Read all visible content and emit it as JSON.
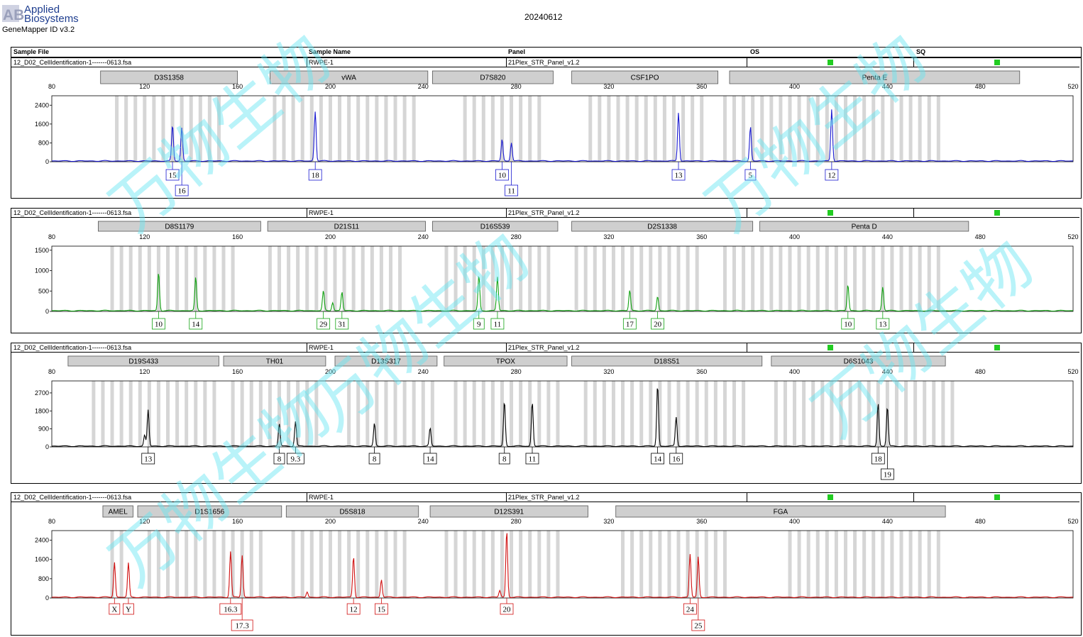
{
  "report": {
    "brand_line1": "Applied",
    "brand_line2": "Biosystems",
    "logo_letters": "AB",
    "software": "GeneMapper ID v3.2",
    "date": "20240612",
    "watermark": "万物生物"
  },
  "table_header": {
    "sample_file": "Sample File",
    "sample_name": "Sample Name",
    "panel": "Panel",
    "os": "OS",
    "sq": "SQ"
  },
  "colors": {
    "blue": "#1a1ad0",
    "green": "#13a313",
    "black": "#000000",
    "red": "#d01010",
    "bin": "#d6d6d6",
    "marker": "#cfcfcf",
    "indicator": "#22cc22"
  },
  "chart_data": [
    {
      "type": "line",
      "color": "blue",
      "sample_file": "12_D02_CellIdentification-1-------0613.fsa",
      "sample_name": "RWPE-1",
      "panel": "21Plex_STR_Panel_v1.2",
      "xlim": [
        80,
        520
      ],
      "x_ticks": [
        80,
        120,
        160,
        200,
        240,
        280,
        320,
        360,
        400,
        440,
        480,
        520
      ],
      "ylim": [
        0,
        2800
      ],
      "y_ticks": [
        0,
        800,
        1600,
        2400
      ],
      "markers": [
        {
          "name": "D3S1358",
          "start": 101,
          "end": 160
        },
        {
          "name": "vWA",
          "start": 174,
          "end": 242
        },
        {
          "name": "D7S820",
          "start": 244,
          "end": 296
        },
        {
          "name": "CSF1PO",
          "start": 304,
          "end": 367
        },
        {
          "name": "Penta E",
          "start": 372,
          "end": 497
        }
      ],
      "bins": [
        [
          108,
          152
        ],
        [
          176,
          236
        ],
        [
          258,
          291
        ],
        [
          312,
          360
        ],
        [
          370,
          465
        ]
      ],
      "peaks": [
        {
          "x": 132,
          "height": 1520,
          "label": "15",
          "row": 0
        },
        {
          "x": 136,
          "height": 1420,
          "label": "16",
          "row": 1
        },
        {
          "x": 193,
          "height": 130,
          "label": "",
          "row": 0
        },
        {
          "x": 193.5,
          "height": 2050,
          "label": "18",
          "row": 0
        },
        {
          "x": 274,
          "height": 920,
          "label": "10",
          "row": 0
        },
        {
          "x": 278,
          "height": 780,
          "label": "11",
          "row": 1
        },
        {
          "x": 350,
          "height": 2060,
          "label": "13",
          "row": 0
        },
        {
          "x": 381,
          "height": 1460,
          "label": "5",
          "row": 0
        },
        {
          "x": 416,
          "height": 2200,
          "label": "12",
          "row": 0
        }
      ]
    },
    {
      "type": "line",
      "color": "green",
      "sample_file": "12_D02_CellIdentification-1-------0613.fsa",
      "sample_name": "RWPE-1",
      "panel": "21Plex_STR_Panel_v1.2",
      "xlim": [
        80,
        520
      ],
      "x_ticks": [
        80,
        120,
        160,
        200,
        240,
        280,
        320,
        360,
        400,
        440,
        480,
        520
      ],
      "ylim": [
        0,
        1600
      ],
      "y_ticks": [
        0,
        500,
        1000,
        1500
      ],
      "markers": [
        {
          "name": "D8S1179",
          "start": 100,
          "end": 170
        },
        {
          "name": "D21S11",
          "start": 173,
          "end": 241
        },
        {
          "name": "D16S539",
          "start": 244,
          "end": 298
        },
        {
          "name": "D2S1338",
          "start": 304,
          "end": 382
        },
        {
          "name": "Penta D",
          "start": 385,
          "end": 475
        }
      ],
      "bins": [
        [
          106,
          160
        ],
        [
          174,
          232
        ],
        [
          250,
          296
        ],
        [
          306,
          360
        ],
        [
          370,
          462
        ]
      ],
      "peaks": [
        {
          "x": 126,
          "height": 940,
          "label": "10",
          "row": 0
        },
        {
          "x": 142,
          "height": 820,
          "label": "14",
          "row": 0
        },
        {
          "x": 197,
          "height": 480,
          "label": "29",
          "row": 0
        },
        {
          "x": 201,
          "height": 200,
          "label": "",
          "row": 0
        },
        {
          "x": 205,
          "height": 460,
          "label": "31",
          "row": 0
        },
        {
          "x": 264,
          "height": 870,
          "label": "9",
          "row": 0
        },
        {
          "x": 272,
          "height": 830,
          "label": "11",
          "row": 0
        },
        {
          "x": 329,
          "height": 500,
          "label": "17",
          "row": 0
        },
        {
          "x": 341,
          "height": 350,
          "label": "20",
          "row": 0
        },
        {
          "x": 423,
          "height": 640,
          "label": "10",
          "row": 0
        },
        {
          "x": 438,
          "height": 580,
          "label": "13",
          "row": 0
        }
      ]
    },
    {
      "type": "line",
      "color": "black",
      "sample_file": "12_D02_CellIdentification-1-------0613.fsa",
      "sample_name": "RWPE-1",
      "panel": "21Plex_STR_Panel_v1.2",
      "xlim": [
        80,
        520
      ],
      "x_ticks": [
        80,
        120,
        160,
        200,
        240,
        280,
        320,
        360,
        400,
        440,
        480,
        520
      ],
      "ylim": [
        0,
        3300
      ],
      "y_ticks": [
        0,
        900,
        1800,
        2700
      ],
      "markers": [
        {
          "name": "D19S433",
          "start": 87,
          "end": 152
        },
        {
          "name": "TH01",
          "start": 154,
          "end": 198
        },
        {
          "name": "D13S317",
          "start": 202,
          "end": 246
        },
        {
          "name": "TPOX",
          "start": 249,
          "end": 302
        },
        {
          "name": "D18S51",
          "start": 304,
          "end": 386
        },
        {
          "name": "D6S1043",
          "start": 390,
          "end": 465
        }
      ],
      "bins": [
        [
          98,
          152
        ],
        [
          158,
          196
        ],
        [
          208,
          244
        ],
        [
          254,
          300
        ],
        [
          310,
          380
        ],
        [
          392,
          468
        ]
      ],
      "peaks": [
        {
          "x": 120,
          "height": 550,
          "label": "",
          "row": 0
        },
        {
          "x": 121.5,
          "height": 1820,
          "label": "13",
          "row": 0
        },
        {
          "x": 178,
          "height": 1120,
          "label": "8",
          "row": 0
        },
        {
          "x": 185,
          "height": 1240,
          "label": "9.3",
          "row": 0
        },
        {
          "x": 219,
          "height": 1150,
          "label": "8",
          "row": 0
        },
        {
          "x": 243,
          "height": 900,
          "label": "14",
          "row": 0
        },
        {
          "x": 275,
          "height": 2250,
          "label": "8",
          "row": 0
        },
        {
          "x": 287,
          "height": 2200,
          "label": "11",
          "row": 0
        },
        {
          "x": 341,
          "height": 3080,
          "label": "14",
          "row": 0
        },
        {
          "x": 349,
          "height": 1450,
          "label": "16",
          "row": 0
        },
        {
          "x": 436,
          "height": 2150,
          "label": "18",
          "row": 0
        },
        {
          "x": 440,
          "height": 1980,
          "label": "19",
          "row": 1
        }
      ]
    },
    {
      "type": "line",
      "color": "red",
      "sample_file": "12_D02_CellIdentification-1-------0613.fsa",
      "sample_name": "RWPE-1",
      "panel": "21Plex_STR_Panel_v1.2",
      "xlim": [
        80,
        520
      ],
      "x_ticks": [
        80,
        120,
        160,
        200,
        240,
        280,
        320,
        360,
        400,
        440,
        480,
        520
      ],
      "ylim": [
        0,
        2800
      ],
      "y_ticks": [
        0,
        800,
        1600,
        2400
      ],
      "markers": [
        {
          "name": "AMEL",
          "start": 102,
          "end": 115
        },
        {
          "name": "D1S1656",
          "start": 117,
          "end": 179
        },
        {
          "name": "D5S818",
          "start": 181,
          "end": 238
        },
        {
          "name": "D12S391",
          "start": 243,
          "end": 311
        },
        {
          "name": "FGA",
          "start": 323,
          "end": 465
        }
      ],
      "bins": [
        [
          106,
          112
        ],
        [
          122,
          170
        ],
        [
          184,
          232
        ],
        [
          250,
          300
        ],
        [
          326,
          372
        ],
        [
          398,
          462
        ]
      ],
      "peaks": [
        {
          "x": 107,
          "height": 1460,
          "label": "X",
          "row": 0
        },
        {
          "x": 113,
          "height": 1420,
          "label": "Y",
          "row": 0
        },
        {
          "x": 157,
          "height": 1900,
          "label": "16.3",
          "row": 0
        },
        {
          "x": 162,
          "height": 1750,
          "label": "17.3",
          "row": 1
        },
        {
          "x": 190,
          "height": 220,
          "label": "",
          "row": 0
        },
        {
          "x": 210,
          "height": 1700,
          "label": "12",
          "row": 0
        },
        {
          "x": 222,
          "height": 740,
          "label": "15",
          "row": 0
        },
        {
          "x": 273,
          "height": 280,
          "label": "",
          "row": 0
        },
        {
          "x": 276,
          "height": 2780,
          "label": "20",
          "row": 0
        },
        {
          "x": 355,
          "height": 1790,
          "label": "24",
          "row": 0
        },
        {
          "x": 358.5,
          "height": 1680,
          "label": "25",
          "row": 1
        }
      ]
    }
  ]
}
